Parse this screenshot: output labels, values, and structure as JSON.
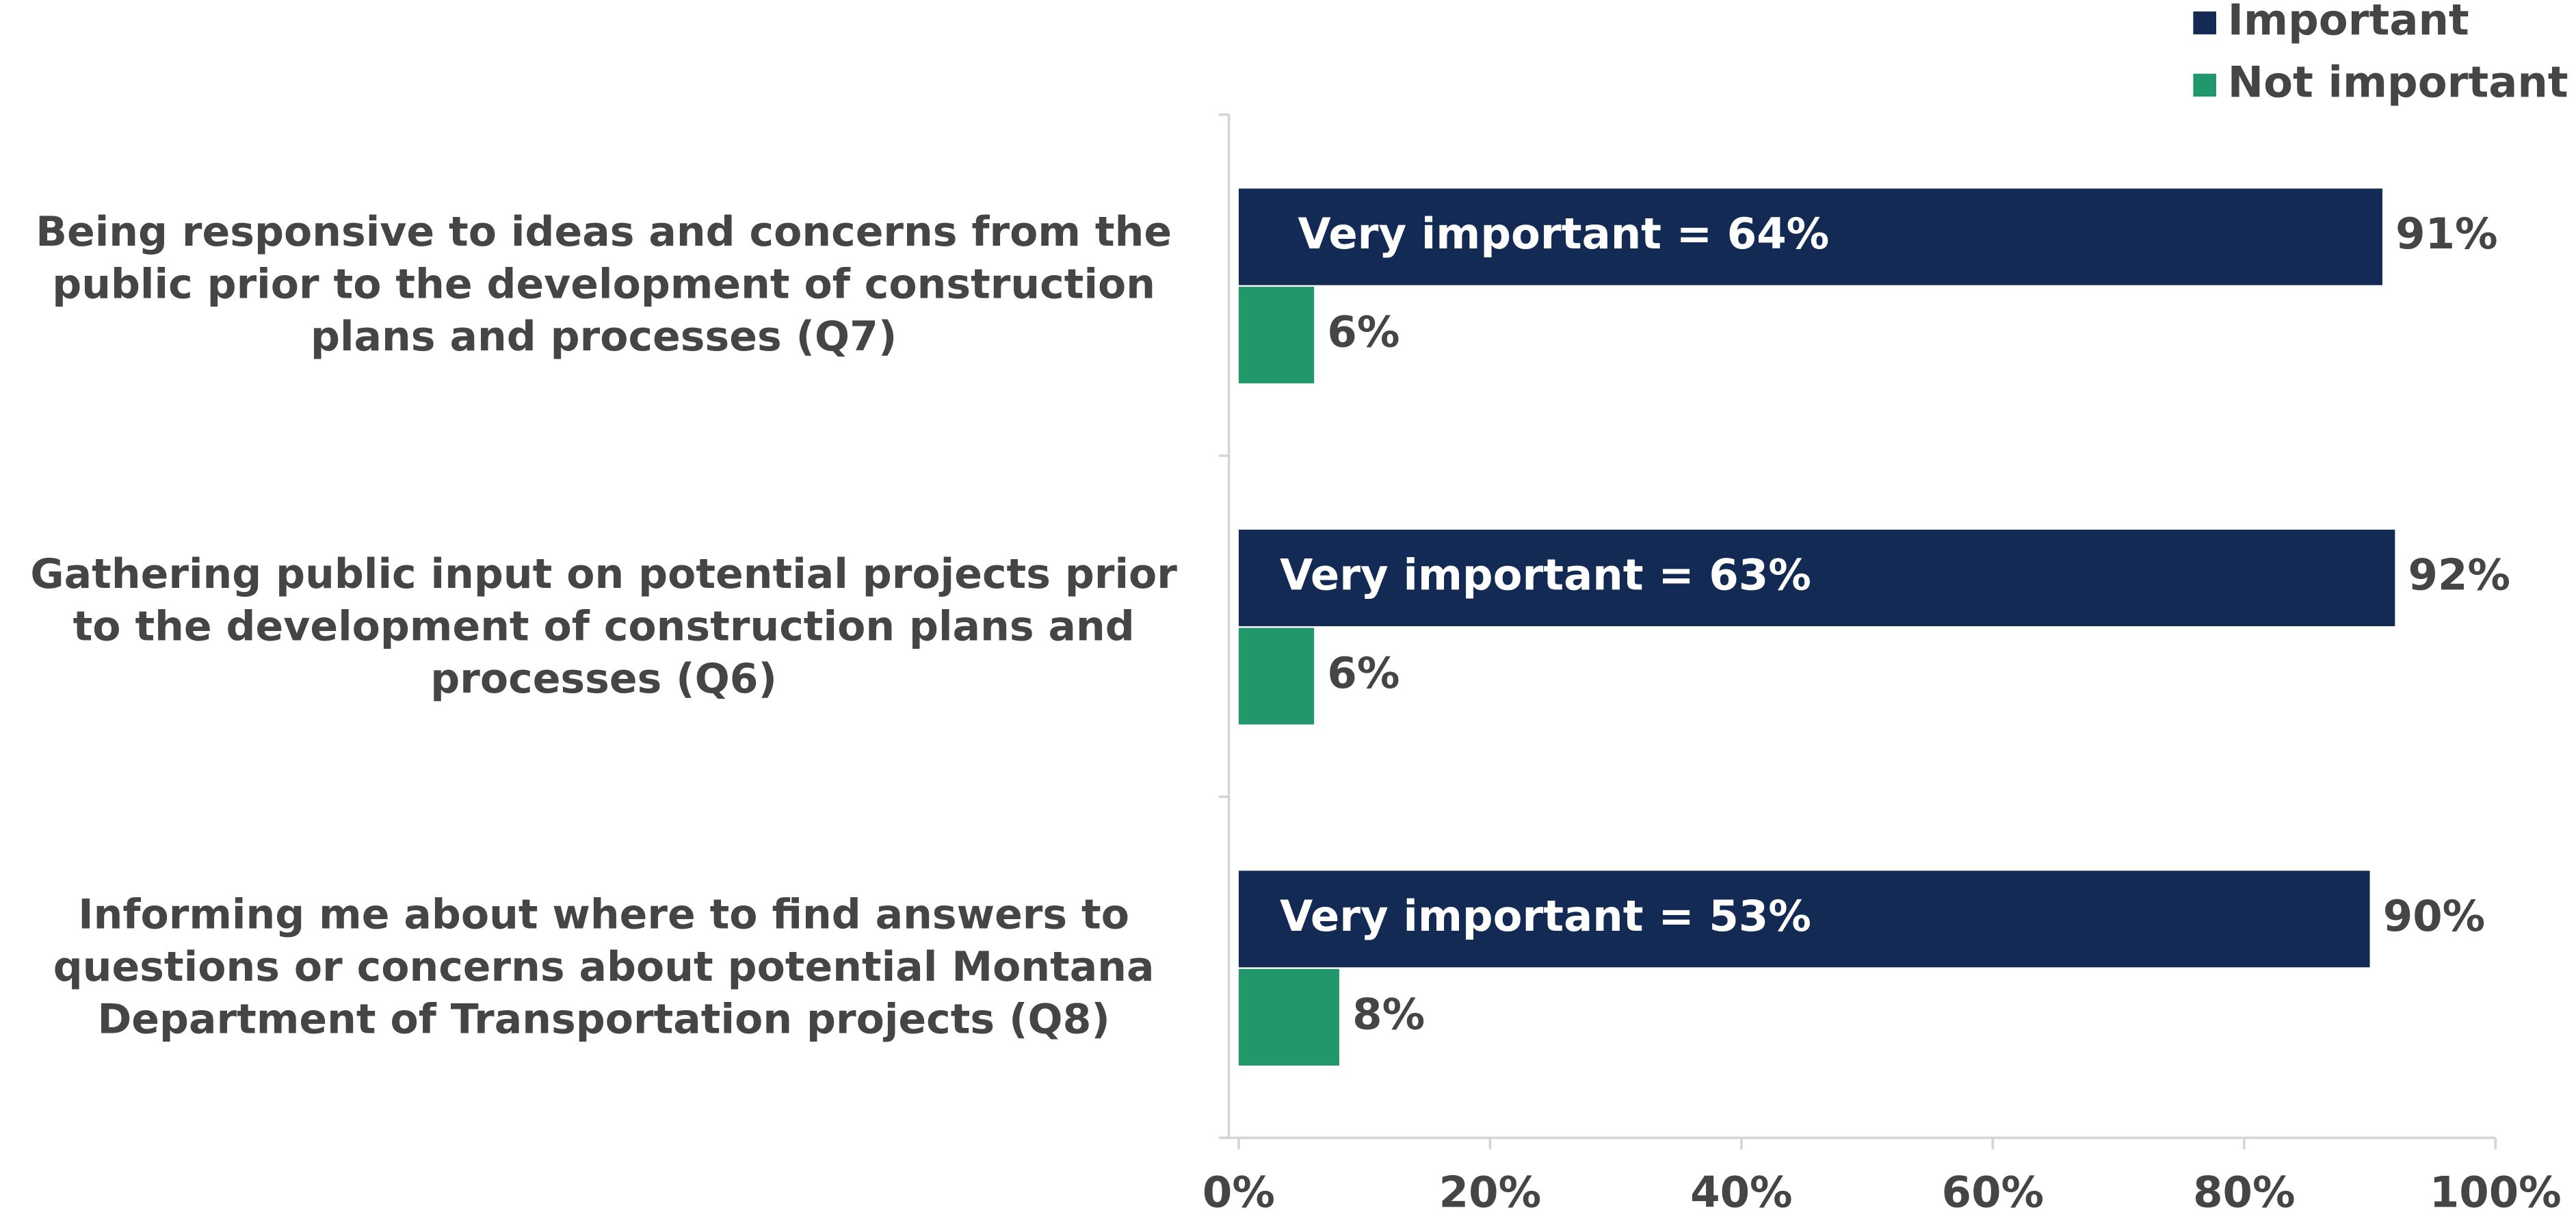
{
  "chart_data": {
    "type": "hbar",
    "categories": [
      "Being responsive to ideas and concerns from the public prior to the development of construction plans and processes (Q7)",
      "Gathering public input on potential projects prior to the development of construction plans and processes (Q6)",
      "Informing me about where  to find answers to questions or concerns about potential Montana Department of Transportation projects (Q8)"
    ],
    "series": [
      {
        "name": "Important",
        "color": "#132b54",
        "values": [
          91,
          92,
          90
        ],
        "value_labels": [
          "91%",
          "92%",
          "90%"
        ]
      },
      {
        "name": "Not important",
        "color": "#21976b",
        "values": [
          6,
          6,
          8
        ],
        "value_labels": [
          "6%",
          "6%",
          "8%"
        ]
      }
    ],
    "annotations": [
      "Very important = 64%",
      "Very important = 63%",
      "Very important = 53%"
    ],
    "xlim": [
      0,
      100
    ],
    "xticks": [
      {
        "value": 0,
        "label": "0%"
      },
      {
        "value": 20,
        "label": "20%"
      },
      {
        "value": 40,
        "label": "40%"
      },
      {
        "value": 60,
        "label": "60%"
      },
      {
        "value": 80,
        "label": "80%"
      },
      {
        "value": 100,
        "label": "100%"
      }
    ],
    "legend": "top-right"
  }
}
